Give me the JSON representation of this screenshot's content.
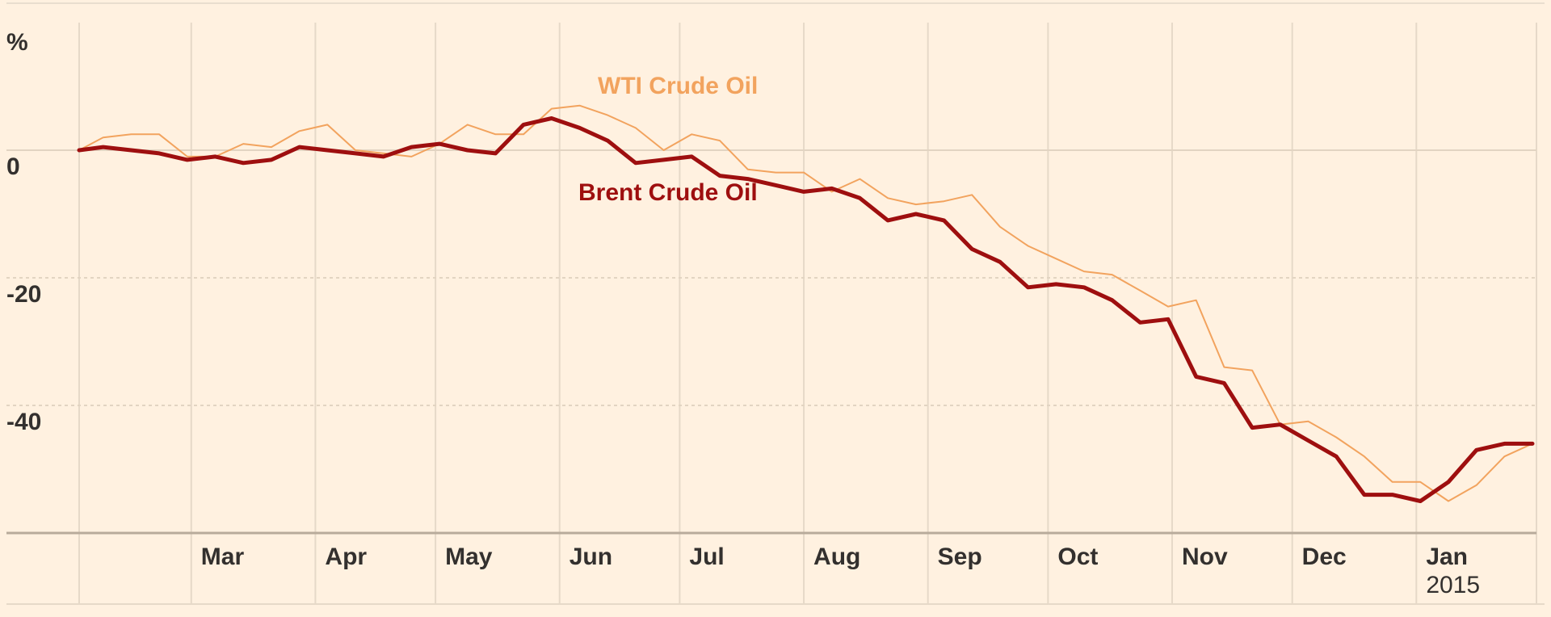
{
  "chart_data": {
    "type": "line",
    "y_unit_label": "%",
    "ylim": [
      -60,
      20
    ],
    "y_ticks": [
      {
        "value": 0,
        "label": "0"
      },
      {
        "value": -20,
        "label": "-20"
      },
      {
        "value": -40,
        "label": "-40"
      }
    ],
    "x_start": "2014-02-01",
    "x_end": "2015-01-31",
    "x_ticks": [
      {
        "date": "2014-03-01",
        "label": "Mar"
      },
      {
        "date": "2014-04-01",
        "label": "Apr"
      },
      {
        "date": "2014-05-01",
        "label": "May"
      },
      {
        "date": "2014-06-01",
        "label": "Jun"
      },
      {
        "date": "2014-07-01",
        "label": "Jul"
      },
      {
        "date": "2014-08-01",
        "label": "Aug"
      },
      {
        "date": "2014-09-01",
        "label": "Sep"
      },
      {
        "date": "2014-10-01",
        "label": "Oct"
      },
      {
        "date": "2014-11-01",
        "label": "Nov"
      },
      {
        "date": "2014-12-01",
        "label": "Dec"
      },
      {
        "date": "2015-01-01",
        "label": "Jan",
        "sublabel": "2015"
      }
    ],
    "grid": true,
    "series": [
      {
        "name": "WTI Crude Oil",
        "color": "#f2a35e",
        "x": [
          "2014-02-01",
          "2014-02-07",
          "2014-02-14",
          "2014-02-21",
          "2014-02-28",
          "2014-03-07",
          "2014-03-14",
          "2014-03-21",
          "2014-03-28",
          "2014-04-04",
          "2014-04-11",
          "2014-04-18",
          "2014-04-25",
          "2014-05-02",
          "2014-05-09",
          "2014-05-16",
          "2014-05-23",
          "2014-05-30",
          "2014-06-06",
          "2014-06-13",
          "2014-06-20",
          "2014-06-27",
          "2014-07-04",
          "2014-07-11",
          "2014-07-18",
          "2014-07-25",
          "2014-08-01",
          "2014-08-08",
          "2014-08-15",
          "2014-08-22",
          "2014-08-29",
          "2014-09-05",
          "2014-09-12",
          "2014-09-19",
          "2014-09-26",
          "2014-10-03",
          "2014-10-10",
          "2014-10-17",
          "2014-10-24",
          "2014-10-31",
          "2014-11-07",
          "2014-11-14",
          "2014-11-21",
          "2014-11-28",
          "2014-12-05",
          "2014-12-12",
          "2014-12-19",
          "2014-12-26",
          "2015-01-02",
          "2015-01-09",
          "2015-01-16",
          "2015-01-23",
          "2015-01-30"
        ],
        "values": [
          0,
          2,
          2.5,
          2.5,
          -1,
          -1,
          1,
          0.5,
          3,
          4,
          0,
          -0.5,
          -1,
          1,
          4,
          2.5,
          2.5,
          6.5,
          7,
          5.5,
          3.5,
          0,
          2.5,
          1.5,
          -3,
          -3.5,
          -3.5,
          -6.5,
          -4.5,
          -7.5,
          -8.5,
          -8,
          -7,
          -12,
          -15,
          -17,
          -19,
          -19.5,
          -22,
          -24.5,
          -23.5,
          -34,
          -34.5,
          -43,
          -42.5,
          -45,
          -48,
          -52,
          -52,
          -55,
          -52.5,
          -48,
          -46
        ]
      },
      {
        "name": "Brent Crude Oil",
        "color": "#9e0f0f",
        "x": [
          "2014-02-01",
          "2014-02-07",
          "2014-02-14",
          "2014-02-21",
          "2014-02-28",
          "2014-03-07",
          "2014-03-14",
          "2014-03-21",
          "2014-03-28",
          "2014-04-04",
          "2014-04-11",
          "2014-04-18",
          "2014-04-25",
          "2014-05-02",
          "2014-05-09",
          "2014-05-16",
          "2014-05-23",
          "2014-05-30",
          "2014-06-06",
          "2014-06-13",
          "2014-06-20",
          "2014-06-27",
          "2014-07-04",
          "2014-07-11",
          "2014-07-18",
          "2014-07-25",
          "2014-08-01",
          "2014-08-08",
          "2014-08-15",
          "2014-08-22",
          "2014-08-29",
          "2014-09-05",
          "2014-09-12",
          "2014-09-19",
          "2014-09-26",
          "2014-10-03",
          "2014-10-10",
          "2014-10-17",
          "2014-10-24",
          "2014-10-31",
          "2014-11-07",
          "2014-11-14",
          "2014-11-21",
          "2014-11-28",
          "2014-12-05",
          "2014-12-12",
          "2014-12-19",
          "2014-12-26",
          "2015-01-02",
          "2015-01-09",
          "2015-01-16",
          "2015-01-23",
          "2015-01-30"
        ],
        "values": [
          0,
          0.5,
          0,
          -0.5,
          -1.5,
          -1,
          -2,
          -1.5,
          0.5,
          0,
          -0.5,
          -1,
          0.5,
          1,
          0,
          -0.5,
          4,
          5,
          3.5,
          1.5,
          -2,
          -1.5,
          -1,
          -4,
          -4.5,
          -5.5,
          -6.5,
          -6,
          -7.5,
          -11,
          -10,
          -11,
          -15.5,
          -17.5,
          -21.5,
          -21,
          -21.5,
          -23.5,
          -27,
          -26.5,
          -35.5,
          -36.5,
          -43.5,
          -43,
          -45.5,
          -48,
          -54,
          -54,
          -55,
          -52,
          -47,
          -46,
          -46
        ]
      }
    ]
  }
}
